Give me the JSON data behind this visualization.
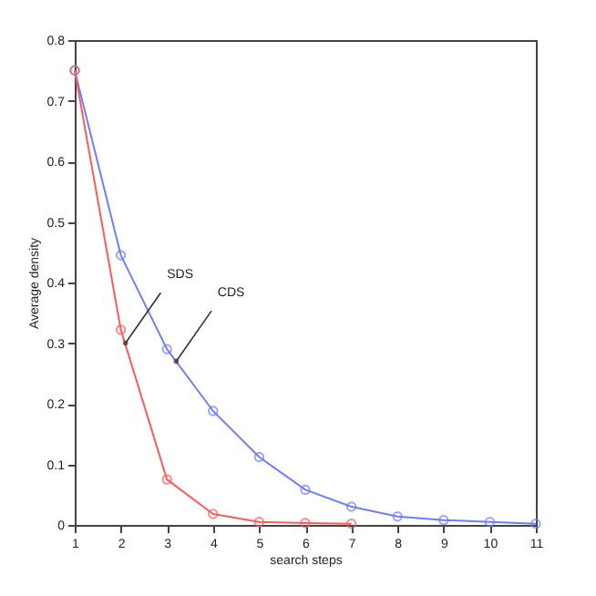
{
  "chart_data": {
    "type": "line",
    "xlabel": "search steps",
    "ylabel": "Average density",
    "x": [
      1,
      2,
      3,
      4,
      5,
      6,
      7,
      8,
      9,
      10,
      11
    ],
    "series": [
      {
        "color": "#6f7dff",
        "values": [
          0.75,
          0.445,
          0.29,
          0.188,
          0.112,
          0.058,
          0.03,
          0.014,
          0.008,
          0.005,
          0.002
        ]
      },
      {
        "color": "#ff5a5a",
        "values": [
          0.75,
          0.322,
          0.075,
          0.018,
          0.005,
          0.003,
          0.002,
          null,
          null,
          null,
          null
        ]
      }
    ],
    "annotations": [
      {
        "text": "SDS",
        "x": 2.1,
        "y": 0.3
      },
      {
        "text": "CDS",
        "x": 3.2,
        "y": 0.27
      }
    ],
    "xlim": [
      1,
      11
    ],
    "xticks": [
      1,
      2,
      3,
      4,
      5,
      6,
      7,
      8,
      9,
      10,
      11
    ],
    "ylim": [
      0,
      0.8
    ],
    "yticks": [
      0,
      0.1,
      0.2,
      0.3,
      0.4,
      0.5,
      0.6,
      0.7,
      0.8
    ],
    "grid": false,
    "marker": "circle",
    "line_style": "solid"
  }
}
